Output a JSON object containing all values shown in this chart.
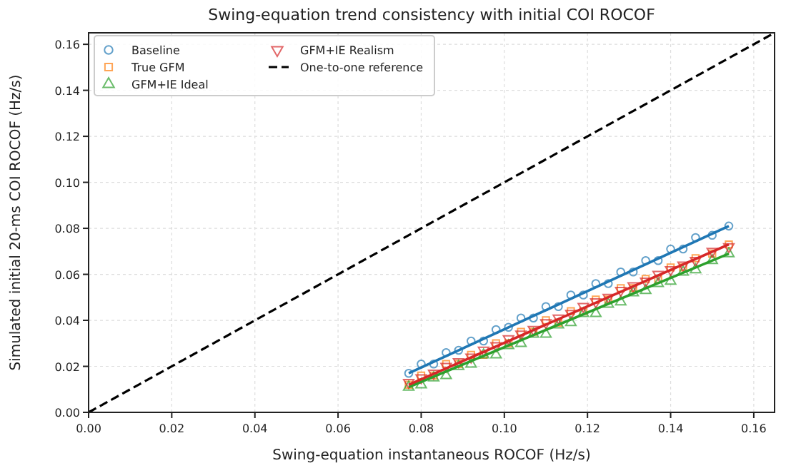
{
  "chart_data": {
    "type": "scatter",
    "title": "Swing-equation trend consistency with initial COI ROCOF",
    "xlabel": "Swing-equation instantaneous ROCOF (Hz/s)",
    "ylabel": "Simulated initial 20-ms COI ROCOF (Hz/s)",
    "xlim": [
      0,
      0.165
    ],
    "ylim": [
      0,
      0.165
    ],
    "xticks": [
      {
        "value": 0,
        "label": "0.00"
      },
      0.02,
      0.04,
      0.06,
      0.08,
      {
        "value": 0.1,
        "label": "0.10"
      },
      0.12,
      0.14,
      0.16
    ],
    "yticks": [
      {
        "value": 0,
        "label": "0.00"
      },
      0.02,
      0.04,
      0.06,
      0.08,
      {
        "value": 0.1,
        "label": "0.10"
      },
      0.12,
      0.14,
      0.16
    ],
    "grid": true,
    "legend": "top left",
    "x": [
      0.077,
      0.08,
      0.083,
      0.086,
      0.089,
      0.092,
      0.095,
      0.098,
      0.101,
      0.104,
      0.107,
      0.11,
      0.113,
      0.116,
      0.119,
      0.122,
      0.125,
      0.128,
      0.131,
      0.134,
      0.137,
      0.14,
      0.143,
      0.146,
      0.15,
      0.154
    ],
    "series": [
      {
        "name": "Baseline",
        "color": "#1f77b4",
        "marker": "circle",
        "values": [
          0.017,
          0.021,
          0.021,
          0.026,
          0.027,
          0.031,
          0.031,
          0.036,
          0.037,
          0.041,
          0.041,
          0.046,
          0.046,
          0.051,
          0.051,
          0.056,
          0.056,
          0.061,
          0.061,
          0.066,
          0.066,
          0.071,
          0.071,
          0.076,
          0.077,
          0.081
        ]
      },
      {
        "name": "True GFM",
        "color": "#ff7f0e",
        "marker": "square",
        "values": [
          0.012,
          0.016,
          0.016,
          0.021,
          0.021,
          0.025,
          0.025,
          0.03,
          0.03,
          0.035,
          0.035,
          0.04,
          0.039,
          0.044,
          0.044,
          0.049,
          0.049,
          0.054,
          0.054,
          0.058,
          0.058,
          0.063,
          0.063,
          0.067,
          0.069,
          0.073
        ]
      },
      {
        "name": "GFM+IE Ideal",
        "color": "#2ca02c",
        "marker": "triangle",
        "values": [
          0.011,
          0.012,
          0.015,
          0.016,
          0.02,
          0.021,
          0.025,
          0.025,
          0.029,
          0.03,
          0.034,
          0.034,
          0.038,
          0.039,
          0.043,
          0.043,
          0.047,
          0.048,
          0.052,
          0.053,
          0.056,
          0.057,
          0.061,
          0.062,
          0.066,
          0.069
        ]
      },
      {
        "name": "GFM+IE Realism",
        "color": "#d62728",
        "marker": "triangle-down",
        "values": [
          0.013,
          0.015,
          0.017,
          0.02,
          0.022,
          0.024,
          0.027,
          0.029,
          0.032,
          0.034,
          0.036,
          0.039,
          0.041,
          0.043,
          0.046,
          0.048,
          0.05,
          0.053,
          0.055,
          0.057,
          0.06,
          0.062,
          0.064,
          0.066,
          0.07,
          0.072
        ]
      },
      {
        "type": "line",
        "color": "#1f77b4",
        "x": [
          0.077,
          0.154
        ],
        "values": [
          0.017,
          0.081
        ]
      },
      {
        "type": "line",
        "color": "#2ca02c",
        "x": [
          0.077,
          0.154
        ],
        "values": [
          0.011,
          0.069
        ]
      },
      {
        "type": "line",
        "color": "#d62728",
        "x": [
          0.077,
          0.154
        ],
        "values": [
          0.012,
          0.073
        ]
      },
      {
        "name": "One-to-one reference",
        "type": "line",
        "color": "#000000",
        "line_style": "dashed",
        "x": [
          0,
          0.165
        ],
        "values": [
          0,
          0.165
        ]
      }
    ]
  }
}
